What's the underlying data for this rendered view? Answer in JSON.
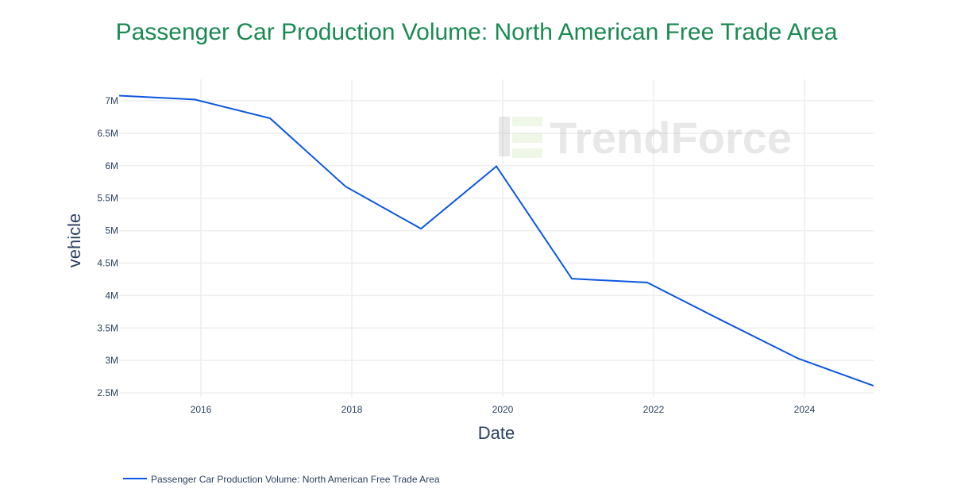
{
  "chart_data": {
    "type": "line",
    "title": "Passenger Car Production Volume: North American Free Trade Area",
    "xlabel": "Date",
    "ylabel": "vehicle",
    "x": [
      "2014-12",
      "2015-12",
      "2016-12",
      "2017-12",
      "2018-12",
      "2019-12",
      "2020-12",
      "2021-12",
      "2022-12",
      "2023-12",
      "2024-12"
    ],
    "series": [
      {
        "name": "Passenger Car Production Volume: North American Free Trade Area",
        "values": [
          7080000,
          7020000,
          6730000,
          5680000,
          5030000,
          5990000,
          4260000,
          4200000,
          3610000,
          3030000,
          2610000
        ],
        "color": "#0b57e0"
      }
    ],
    "x_ticks": [
      "2016",
      "2018",
      "2020",
      "2022",
      "2024"
    ],
    "y_ticks": [
      "2.5M",
      "3M",
      "3.5M",
      "4M",
      "4.5M",
      "5M",
      "5.5M",
      "6M",
      "6.5M",
      "7M"
    ],
    "xlim": [
      "2014-12",
      "2024-12"
    ],
    "ylim": [
      2500000,
      7000000
    ],
    "grid": true,
    "legend_position": "bottom-left",
    "watermark": "TrendForce"
  }
}
